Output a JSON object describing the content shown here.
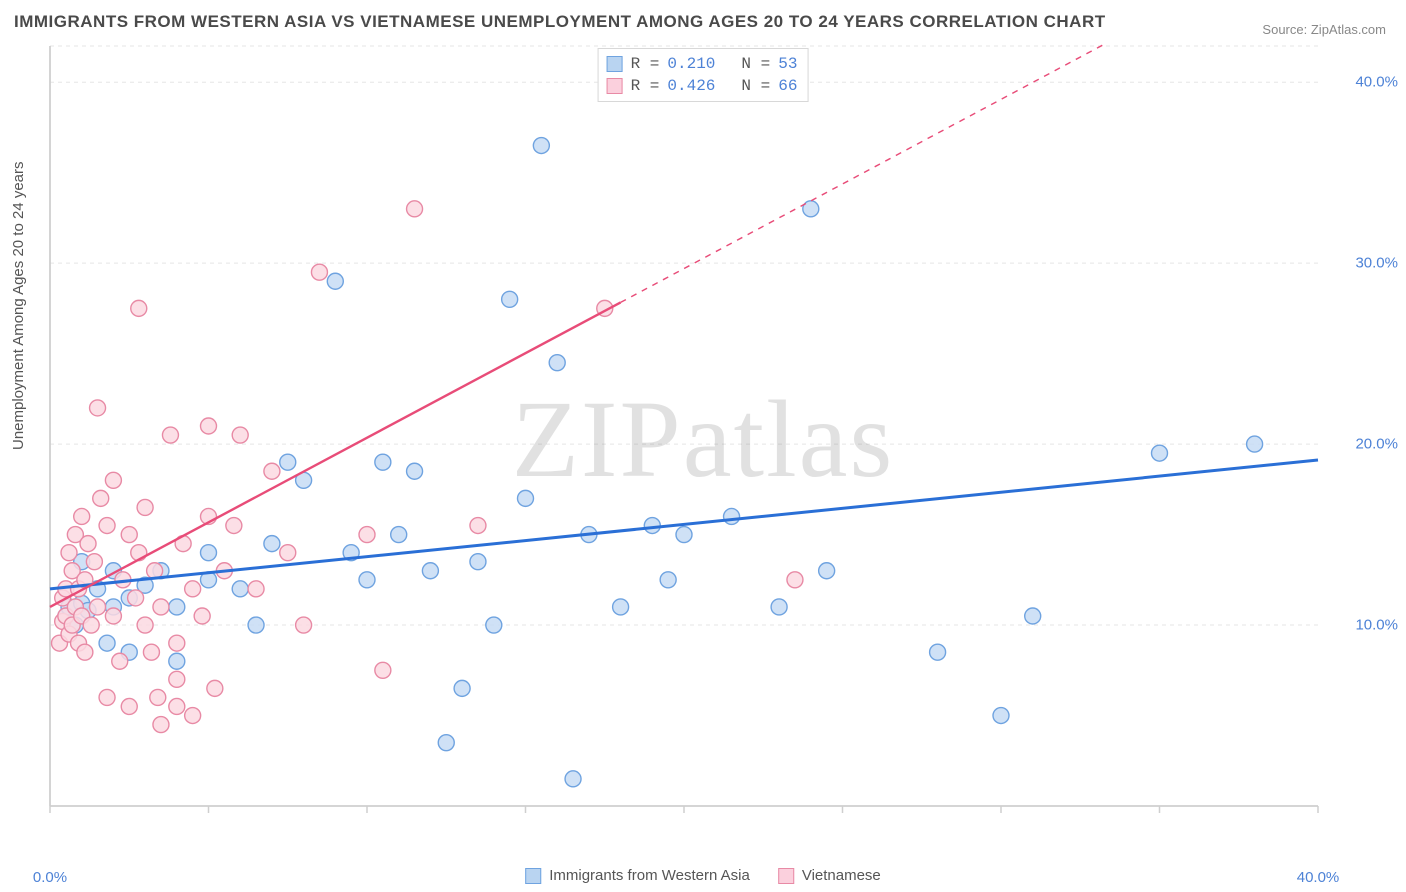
{
  "header": {
    "title": "IMMIGRANTS FROM WESTERN ASIA VS VIETNAMESE UNEMPLOYMENT AMONG AGES 20 TO 24 YEARS CORRELATION CHART",
    "source_label": "Source:",
    "source_name": "ZipAtlas.com"
  },
  "watermark": "ZIPatlas",
  "chart": {
    "type": "scatter",
    "ylabel": "Unemployment Among Ages 20 to 24 years",
    "xlim": [
      0,
      40
    ],
    "ylim": [
      0,
      42
    ],
    "x_ticks": [
      0,
      40
    ],
    "x_tick_labels": [
      "0.0%",
      "40.0%"
    ],
    "y_ticks": [
      10,
      20,
      30,
      40
    ],
    "y_tick_labels": [
      "10.0%",
      "20.0%",
      "30.0%",
      "40.0%"
    ],
    "grid_color": "#e5e5e5",
    "axis_line_color": "#cfcfcf",
    "background_color": "#ffffff",
    "marker_radius": 8,
    "marker_stroke_width": 1.4,
    "series": [
      {
        "name": "Immigrants from Western Asia",
        "fill": "#c7dcf5",
        "stroke": "#6fa3e0",
        "swatch_fill": "#b9d4f1",
        "swatch_stroke": "#6fa3e0",
        "trend": {
          "m": 0.178,
          "b": 12.0,
          "solid_until_x": 40,
          "color": "#2a6fd6",
          "width": 3
        },
        "points": [
          [
            0.5,
            10.5
          ],
          [
            0.6,
            11.0
          ],
          [
            0.8,
            10.0
          ],
          [
            1.0,
            11.2
          ],
          [
            1.0,
            13.5
          ],
          [
            1.2,
            10.8
          ],
          [
            1.5,
            12.0
          ],
          [
            1.8,
            9.0
          ],
          [
            2.0,
            11.0
          ],
          [
            2.0,
            13.0
          ],
          [
            2.5,
            8.5
          ],
          [
            2.5,
            11.5
          ],
          [
            3.0,
            12.2
          ],
          [
            3.5,
            13.0
          ],
          [
            4.0,
            11.0
          ],
          [
            4.0,
            8.0
          ],
          [
            5.0,
            14.0
          ],
          [
            5.0,
            12.5
          ],
          [
            6.0,
            12.0
          ],
          [
            6.5,
            10.0
          ],
          [
            7.0,
            14.5
          ],
          [
            7.5,
            19.0
          ],
          [
            8.0,
            18.0
          ],
          [
            9.0,
            29.0
          ],
          [
            9.5,
            14.0
          ],
          [
            10.0,
            12.5
          ],
          [
            10.5,
            19.0
          ],
          [
            11.0,
            15.0
          ],
          [
            11.5,
            18.5
          ],
          [
            12.0,
            13.0
          ],
          [
            12.5,
            3.5
          ],
          [
            13.0,
            6.5
          ],
          [
            13.5,
            13.5
          ],
          [
            14.0,
            10.0
          ],
          [
            14.5,
            28.0
          ],
          [
            15.0,
            17.0
          ],
          [
            15.5,
            36.5
          ],
          [
            16.0,
            24.5
          ],
          [
            16.5,
            1.5
          ],
          [
            17.0,
            15.0
          ],
          [
            18.0,
            11.0
          ],
          [
            19.0,
            15.5
          ],
          [
            19.5,
            12.5
          ],
          [
            20.0,
            15.0
          ],
          [
            21.5,
            16.0
          ],
          [
            23.0,
            11.0
          ],
          [
            24.0,
            33.0
          ],
          [
            24.5,
            13.0
          ],
          [
            28.0,
            8.5
          ],
          [
            30.0,
            5.0
          ],
          [
            31.0,
            10.5
          ],
          [
            35.0,
            19.5
          ],
          [
            38.0,
            20.0
          ]
        ]
      },
      {
        "name": "Vietnamese",
        "fill": "#fcd9e2",
        "stroke": "#e88aa5",
        "swatch_fill": "#fbd0dd",
        "swatch_stroke": "#e88aa5",
        "trend": {
          "m": 0.935,
          "b": 11.0,
          "solid_until_x": 18,
          "color": "#e84c78",
          "width": 2.4
        },
        "points": [
          [
            0.3,
            9.0
          ],
          [
            0.4,
            10.2
          ],
          [
            0.4,
            11.5
          ],
          [
            0.5,
            10.5
          ],
          [
            0.5,
            12.0
          ],
          [
            0.6,
            9.5
          ],
          [
            0.6,
            14.0
          ],
          [
            0.7,
            10.0
          ],
          [
            0.7,
            13.0
          ],
          [
            0.8,
            11.0
          ],
          [
            0.8,
            15.0
          ],
          [
            0.9,
            9.0
          ],
          [
            0.9,
            12.0
          ],
          [
            1.0,
            10.5
          ],
          [
            1.0,
            16.0
          ],
          [
            1.1,
            8.5
          ],
          [
            1.1,
            12.5
          ],
          [
            1.2,
            14.5
          ],
          [
            1.3,
            10.0
          ],
          [
            1.4,
            13.5
          ],
          [
            1.5,
            22.0
          ],
          [
            1.5,
            11.0
          ],
          [
            1.6,
            17.0
          ],
          [
            1.8,
            15.5
          ],
          [
            1.8,
            6.0
          ],
          [
            2.0,
            10.5
          ],
          [
            2.0,
            18.0
          ],
          [
            2.2,
            8.0
          ],
          [
            2.3,
            12.5
          ],
          [
            2.5,
            15.0
          ],
          [
            2.5,
            5.5
          ],
          [
            2.7,
            11.5
          ],
          [
            2.8,
            14.0
          ],
          [
            2.8,
            27.5
          ],
          [
            3.0,
            10.0
          ],
          [
            3.0,
            16.5
          ],
          [
            3.2,
            8.5
          ],
          [
            3.3,
            13.0
          ],
          [
            3.4,
            6.0
          ],
          [
            3.5,
            4.5
          ],
          [
            3.5,
            11.0
          ],
          [
            3.8,
            20.5
          ],
          [
            4.0,
            9.0
          ],
          [
            4.0,
            7.0
          ],
          [
            4.0,
            5.5
          ],
          [
            4.2,
            14.5
          ],
          [
            4.5,
            12.0
          ],
          [
            4.5,
            5.0
          ],
          [
            4.8,
            10.5
          ],
          [
            5.0,
            16.0
          ],
          [
            5.0,
            21.0
          ],
          [
            5.2,
            6.5
          ],
          [
            5.5,
            13.0
          ],
          [
            5.8,
            15.5
          ],
          [
            6.0,
            20.5
          ],
          [
            6.5,
            12.0
          ],
          [
            7.0,
            18.5
          ],
          [
            7.5,
            14.0
          ],
          [
            8.0,
            10.0
          ],
          [
            8.5,
            29.5
          ],
          [
            10.0,
            15.0
          ],
          [
            10.5,
            7.5
          ],
          [
            11.5,
            33.0
          ],
          [
            13.5,
            15.5
          ],
          [
            17.5,
            27.5
          ],
          [
            23.5,
            12.5
          ]
        ]
      }
    ],
    "legend_top": {
      "rows": [
        {
          "swatch_series": 0,
          "r_label": "R =",
          "r_value": "0.210",
          "n_label": "N =",
          "n_value": "53"
        },
        {
          "swatch_series": 1,
          "r_label": "R =",
          "r_value": "0.426",
          "n_label": "N =",
          "n_value": "66"
        }
      ]
    }
  }
}
